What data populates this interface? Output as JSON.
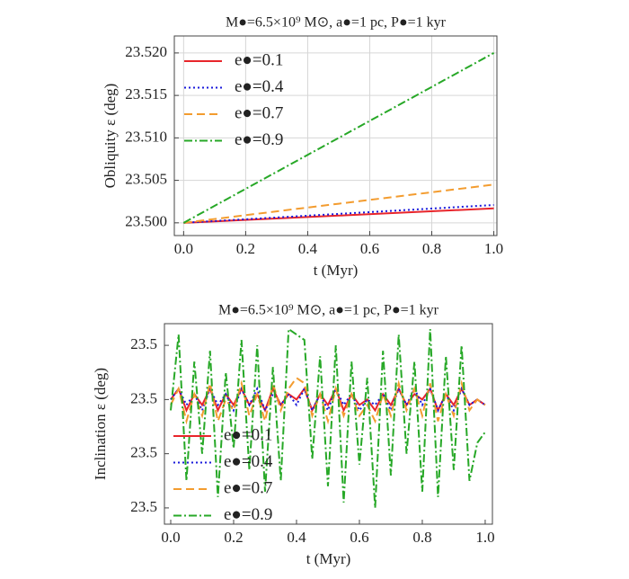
{
  "chart_data": [
    {
      "type": "line",
      "title": "M●=6.5×10⁹ M⊙, a●=1 pc, P●=1 kyr",
      "x_label": "t (Myr)",
      "y_label": "Obliquity ε (deg)",
      "x": [
        0,
        0.5,
        1
      ],
      "series": [
        {
          "name": "e●=0.1",
          "color": "#e8252b",
          "style": "solid",
          "values": [
            23.5,
            23.50085,
            23.5017
          ]
        },
        {
          "name": "e●=0.4",
          "color": "#1a1adb",
          "style": "dotted",
          "values": [
            23.5,
            23.50105,
            23.5021
          ]
        },
        {
          "name": "e●=0.7",
          "color": "#f39c2f",
          "style": "dashed",
          "values": [
            23.5,
            23.50225,
            23.5045
          ]
        },
        {
          "name": "e●=0.9",
          "color": "#27a827",
          "style": "dashdot",
          "values": [
            23.5,
            23.51,
            23.52
          ]
        }
      ],
      "xlim": [
        -0.03,
        1.01
      ],
      "ylim": [
        23.4985,
        23.522
      ],
      "xticks": [
        {
          "value": 0,
          "label": "0.0"
        },
        0.2,
        0.4,
        0.6,
        0.8,
        {
          "value": 1,
          "label": "1.0"
        }
      ],
      "yticks": [
        {
          "value": 23.5,
          "label": "23.500"
        },
        {
          "value": 23.505,
          "label": "23.505"
        },
        {
          "value": 23.51,
          "label": "23.510"
        },
        {
          "value": 23.515,
          "label": "23.515"
        },
        {
          "value": 23.52,
          "label": "23.520"
        }
      ],
      "grid": true,
      "legend": "upper left"
    },
    {
      "type": "line",
      "title": "M●=6.5×10⁹ M⊙, a●=1 pc, P●=1 kyr",
      "x_label": "t (Myr)",
      "y_label": "Inclination ε (deg)",
      "x": [
        0,
        0.025,
        0.05,
        0.075,
        0.1,
        0.125,
        0.15,
        0.175,
        0.2,
        0.225,
        0.25,
        0.275,
        0.3,
        0.325,
        0.35,
        0.375,
        0.4,
        0.425,
        0.45,
        0.475,
        0.5,
        0.525,
        0.55,
        0.575,
        0.6,
        0.625,
        0.65,
        0.675,
        0.7,
        0.725,
        0.75,
        0.775,
        0.8,
        0.825,
        0.85,
        0.875,
        0.9,
        0.925,
        0.95,
        0.975,
        1
      ],
      "series": [
        {
          "name": "e●=0.1",
          "color": "#e8252b",
          "style": "solid",
          "values": [
            23.5005,
            23.5007,
            23.5003,
            23.5006,
            23.5004,
            23.5007,
            23.5003,
            23.5006,
            23.5004,
            23.5007,
            23.5004,
            23.5006,
            23.5003,
            23.5007,
            23.5004,
            23.5006,
            23.5005,
            23.5007,
            23.5003,
            23.5006,
            23.5004,
            23.5007,
            23.5003,
            23.5006,
            23.5004,
            23.5005,
            23.5003,
            23.5006,
            23.5004,
            23.5007,
            23.5004,
            23.5006,
            23.5005,
            23.5007,
            23.5003,
            23.5006,
            23.5004,
            23.5007,
            23.5004,
            23.5005,
            23.5004
          ]
        },
        {
          "name": "e●=0.4",
          "color": "#1a1adb",
          "style": "dotted",
          "values": [
            23.5005,
            23.5007,
            23.5004,
            23.5006,
            23.5003,
            23.5007,
            23.5004,
            23.5006,
            23.5003,
            23.5007,
            23.5004,
            23.5007,
            23.5003,
            23.5006,
            23.5004,
            23.5006,
            23.5004,
            23.5007,
            23.5003,
            23.5006,
            23.5003,
            23.5007,
            23.5004,
            23.5006,
            23.5003,
            23.5005,
            23.5004,
            23.5006,
            23.5003,
            23.5007,
            23.5004,
            23.5007,
            23.5004,
            23.5007,
            23.5003,
            23.5006,
            23.5003,
            23.5007,
            23.5004,
            23.5005,
            23.5004
          ]
        },
        {
          "name": "e●=0.7",
          "color": "#f39c2f",
          "style": "dashed",
          "values": [
            23.5004,
            23.5007,
            23.5001,
            23.5006,
            23.5002,
            23.5008,
            23.5001,
            23.5005,
            23.5003,
            23.5008,
            23.5002,
            23.5006,
            23.5001,
            23.5008,
            23.5003,
            23.5007,
            23.5009,
            23.5008,
            23.5002,
            23.5006,
            23.5001,
            23.5007,
            23.5002,
            23.5006,
            23.5002,
            23.5004,
            23.5001,
            23.5006,
            23.5002,
            23.5008,
            23.5003,
            23.5007,
            23.5002,
            23.5008,
            23.5001,
            23.5006,
            23.5002,
            23.5008,
            23.5003,
            23.5005,
            23.5004
          ]
        },
        {
          "name": "e●=0.9",
          "color": "#27a827",
          "style": "dashdot",
          "values": [
            23.5003,
            23.5017,
            23.499,
            23.5012,
            23.4995,
            23.5014,
            23.4987,
            23.501,
            23.4996,
            23.5016,
            23.4992,
            23.5015,
            23.4988,
            23.5011,
            23.499,
            23.5018,
            23.5017,
            23.5016,
            23.4994,
            23.5013,
            23.4989,
            23.5015,
            23.4986,
            23.5012,
            23.4993,
            23.5009,
            23.4985,
            23.5014,
            23.4991,
            23.5017,
            23.4995,
            23.5012,
            23.4988,
            23.5018,
            23.4987,
            23.5013,
            23.4992,
            23.5015,
            23.499,
            23.4997,
            23.4999
          ]
        }
      ],
      "xlim": [
        -0.02,
        1.023
      ],
      "ylim": [
        23.4982,
        23.5019
      ],
      "xticks": [
        {
          "value": 0,
          "label": "0.0"
        },
        0.2,
        0.4,
        0.6,
        0.8,
        {
          "value": 1,
          "label": "1.0"
        }
      ],
      "yticks": [
        {
          "value": 23.4985,
          "label": "23.5"
        },
        {
          "value": 23.4995,
          "label": "23.5"
        },
        {
          "value": 23.5005,
          "label": "23.5"
        },
        {
          "value": 23.5015,
          "label": "23.5"
        }
      ],
      "grid": false,
      "legend": "lower left"
    }
  ]
}
